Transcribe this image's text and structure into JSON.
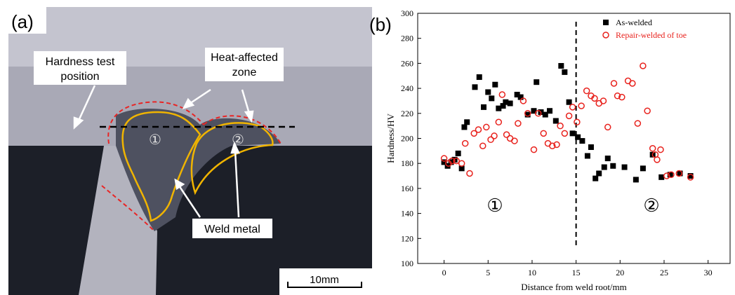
{
  "photo": {
    "panel_label": "(a)",
    "hardness_label": [
      "Hardness test",
      "position"
    ],
    "haz_label": [
      "Heat-affected",
      "zone"
    ],
    "zone_1": "①",
    "zone_2": "②",
    "weld_label": "Weld metal",
    "scale_label": "10mm"
  },
  "chart_data": {
    "type": "scatter",
    "panel_label": "(b)",
    "x_label": "Distance from weld root/mm",
    "y_label": "Hardness/HV",
    "xlim": [
      -3,
      32.5
    ],
    "ylim": [
      100,
      300
    ],
    "xticks": [
      0,
      5,
      10,
      15,
      20,
      25,
      30
    ],
    "yticks": [
      100,
      120,
      140,
      160,
      180,
      200,
      220,
      240,
      260,
      280,
      300
    ],
    "reference_line": 15,
    "annotations": [
      "①",
      "②"
    ],
    "legend": "upper right",
    "series": [
      {
        "name": "As-welded",
        "color": "#000000",
        "marker": "square",
        "x": [
          0,
          0.4,
          0.8,
          1.2,
          1.6,
          2,
          2.3,
          2.6,
          3.5,
          4,
          4.5,
          5,
          5.4,
          5.8,
          6.2,
          6.7,
          7,
          7.5,
          8.3,
          8.7,
          9.5,
          10.2,
          10.5,
          11,
          11.5,
          12,
          12.7,
          13.3,
          13.7,
          14.2,
          14.6,
          15.2,
          15.7,
          16.3,
          16.7,
          17.2,
          17.6,
          18.2,
          18.6,
          19.2,
          20.5,
          21.8,
          22.6,
          23.7,
          24.7,
          25.7,
          26.8,
          28
        ],
        "values": [
          181,
          178,
          181,
          183,
          188,
          176,
          209,
          213,
          241,
          249,
          225,
          237,
          232,
          243,
          224,
          226,
          229,
          228,
          235,
          233,
          219,
          222,
          245,
          221,
          219,
          222,
          214,
          258,
          253,
          229,
          204,
          201,
          198,
          186,
          193,
          168,
          172,
          177,
          184,
          178,
          177,
          167,
          176,
          187,
          169,
          171,
          172,
          170
        ]
      },
      {
        "name": "Repair-welded of toe",
        "color": "#e8211c",
        "marker": "circle",
        "x": [
          0,
          0.5,
          0.9,
          1.4,
          2,
          2.4,
          2.9,
          3.4,
          3.9,
          4.4,
          4.8,
          5.3,
          5.7,
          6.2,
          6.6,
          7.1,
          7.5,
          8,
          8.4,
          9,
          9.5,
          10.2,
          10.7,
          11.3,
          11.8,
          12.3,
          12.8,
          13.2,
          13.7,
          14.2,
          14.6,
          15.1,
          15.6,
          16.2,
          16.7,
          17.1,
          17.6,
          18.1,
          18.6,
          19.3,
          19.7,
          20.2,
          20.9,
          21.4,
          22,
          22.6,
          23.1,
          23.7,
          24,
          24.2,
          24.6,
          25.3,
          25.8,
          26.7,
          28
        ],
        "values": [
          184,
          180,
          182,
          182,
          180,
          196,
          172,
          204,
          207,
          194,
          209,
          199,
          202,
          213,
          235,
          203,
          200,
          198,
          212,
          230,
          220,
          191,
          220,
          204,
          196,
          194,
          195,
          210,
          204,
          218,
          225,
          213,
          226,
          238,
          234,
          232,
          228,
          230,
          209,
          244,
          234,
          233,
          246,
          244,
          212,
          258,
          222,
          192,
          187,
          183,
          191,
          170,
          171,
          172,
          169
        ]
      }
    ]
  }
}
